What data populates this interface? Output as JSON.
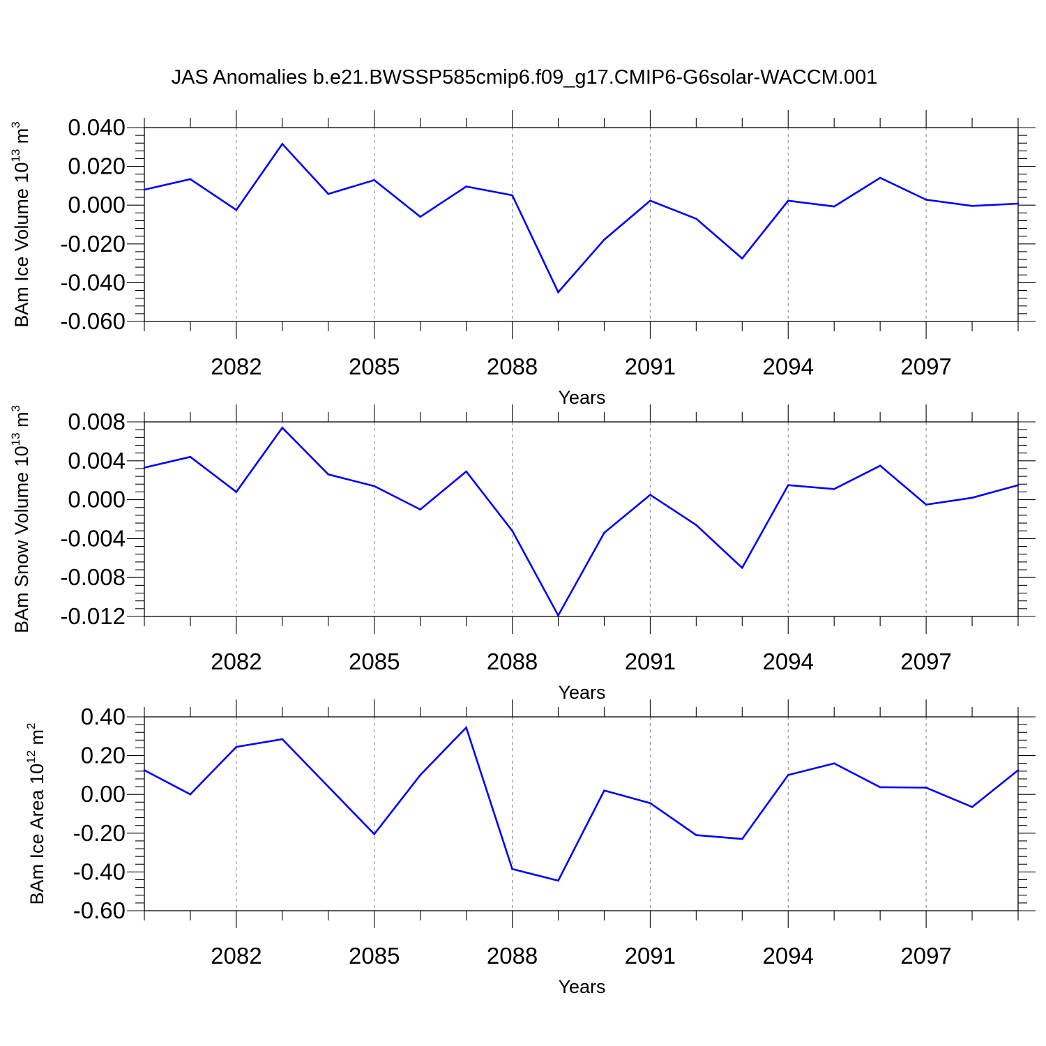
{
  "title": "JAS Anomalies b.e21.BWSSP585cmip6.f09_g17.CMIP6-G6solar-WACCM.001",
  "colors": {
    "series": "#0000ff",
    "axes": "#000000",
    "grid": "#7a7a7a"
  },
  "chart_data": [
    {
      "type": "line",
      "ylabel": {
        "main": "BAm Ice Volume 10",
        "exp": "13",
        "unit": " m",
        "unit_exp": "3"
      },
      "xlabel": "Years",
      "xlim": [
        2080,
        2099
      ],
      "ylim": [
        -0.06,
        0.04
      ],
      "yticks": [
        0.04,
        0.02,
        0.0,
        -0.02,
        -0.04,
        -0.06
      ],
      "yticklabels": [
        "0.040",
        "0.020",
        "0.000",
        "-0.020",
        "-0.040",
        "-0.060"
      ],
      "xticks": [
        2082,
        2085,
        2088,
        2091,
        2094,
        2097
      ],
      "xticklabels": [
        "2082",
        "2085",
        "2088",
        "2091",
        "2094",
        "2097"
      ],
      "grid": "vertical dashed at labeled years",
      "x": [
        2080,
        2081,
        2082,
        2083,
        2084,
        2085,
        2086,
        2087,
        2088,
        2089,
        2090,
        2091,
        2092,
        2093,
        2094,
        2095,
        2096,
        2097,
        2098,
        2099
      ],
      "series": [
        {
          "values": [
            0.008,
            0.0134,
            -0.0025,
            0.0316,
            0.0058,
            0.0129,
            -0.006,
            0.0096,
            0.0051,
            -0.0449,
            -0.0178,
            0.0023,
            -0.007,
            -0.0275,
            0.0023,
            -0.0007,
            0.0141,
            0.0028,
            -0.0004,
            0.0008
          ]
        }
      ]
    },
    {
      "type": "line",
      "ylabel": {
        "main": "BAm Snow Volume 10",
        "exp": "13",
        "unit": " m",
        "unit_exp": "3"
      },
      "xlabel": "Years",
      "xlim": [
        2080,
        2099
      ],
      "ylim": [
        -0.012,
        0.008
      ],
      "yticks": [
        0.008,
        0.004,
        0.0,
        -0.004,
        -0.008,
        -0.012
      ],
      "yticklabels": [
        "0.008",
        "0.004",
        "0.000",
        "-0.004",
        "-0.008",
        "-0.012"
      ],
      "xticks": [
        2082,
        2085,
        2088,
        2091,
        2094,
        2097
      ],
      "xticklabels": [
        "2082",
        "2085",
        "2088",
        "2091",
        "2094",
        "2097"
      ],
      "grid": "vertical dashed at labeled years",
      "x": [
        2080,
        2081,
        2082,
        2083,
        2084,
        2085,
        2086,
        2087,
        2088,
        2089,
        2090,
        2091,
        2092,
        2093,
        2094,
        2095,
        2096,
        2097,
        2098,
        2099
      ],
      "series": [
        {
          "values": [
            0.0033,
            0.0044,
            0.0008,
            0.0074,
            0.0026,
            0.0014,
            -0.001,
            0.0029,
            -0.0032,
            -0.0119,
            -0.0034,
            0.0005,
            -0.0026,
            -0.007,
            0.0015,
            0.0011,
            0.0035,
            -0.0005,
            0.0002,
            0.0015
          ]
        }
      ]
    },
    {
      "type": "line",
      "ylabel": {
        "main": "BAm Ice Area 10",
        "exp": "12",
        "unit": " m",
        "unit_exp": "2"
      },
      "xlabel": "Years",
      "xlim": [
        2080,
        2099
      ],
      "ylim": [
        -0.6,
        0.4
      ],
      "yticks": [
        0.4,
        0.2,
        0.0,
        -0.2,
        -0.4,
        -0.6
      ],
      "yticklabels": [
        "0.40",
        "0.20",
        "0.00",
        "-0.20",
        "-0.40",
        "-0.60"
      ],
      "xticks": [
        2082,
        2085,
        2088,
        2091,
        2094,
        2097
      ],
      "xticklabels": [
        "2082",
        "2085",
        "2088",
        "2091",
        "2094",
        "2097"
      ],
      "grid": "vertical dashed at labeled years",
      "x": [
        2080,
        2081,
        2082,
        2083,
        2084,
        2085,
        2086,
        2087,
        2088,
        2089,
        2090,
        2091,
        2092,
        2093,
        2094,
        2095,
        2096,
        2097,
        2098,
        2099
      ],
      "series": [
        {
          "values": [
            0.125,
            0.0,
            0.245,
            0.285,
            0.04,
            -0.205,
            0.1,
            0.345,
            -0.385,
            -0.445,
            0.02,
            -0.045,
            -0.21,
            -0.23,
            0.1,
            0.16,
            0.037,
            0.035,
            -0.065,
            0.125
          ]
        }
      ]
    }
  ]
}
